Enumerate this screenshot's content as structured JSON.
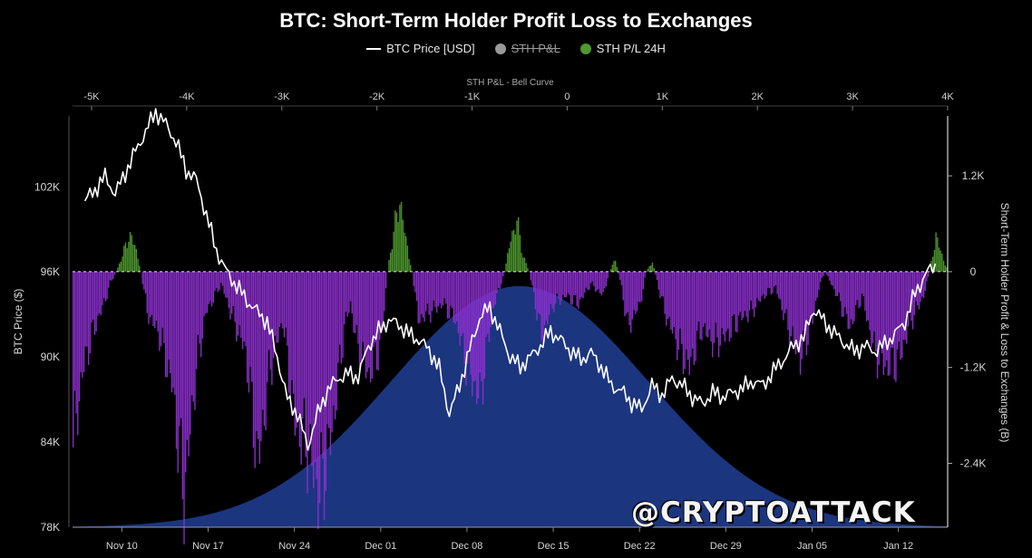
{
  "title": "BTC: Short-Term Holder Profit Loss to Exchanges",
  "legend": {
    "price": "BTC Price [USD]",
    "stth": "STH P&L",
    "stth24": "STH P/L 24H"
  },
  "watermark": "@CRYPTOATTACK",
  "colors": {
    "background": "#000000",
    "price": "#ffffff",
    "profit": "#4e9a2e",
    "loss": "#8d2fd0",
    "bell": "#1e3a8a",
    "stth_hidden": "#9a9a9a"
  },
  "chart_data": {
    "type": "line",
    "title": "BTC: Short-Term Holder Profit Loss to Exchanges",
    "top_axis": {
      "label": "STH P&L - Bell Curve",
      "ticks": [
        "-5K",
        "-4K",
        "-3K",
        "-2K",
        "-1K",
        "0",
        "1K",
        "2K",
        "3K",
        "4K"
      ],
      "values": [
        -5000,
        -4000,
        -3000,
        -2000,
        -1000,
        0,
        1000,
        2000,
        3000,
        4000
      ],
      "range": [
        -5200,
        4000
      ]
    },
    "x_axis": {
      "ticks": [
        "Nov 10",
        "Nov 17",
        "Nov 24",
        "Dec 01",
        "Dec 08",
        "Dec 15",
        "Dec 22",
        "Dec 29",
        "Jan 05",
        "Jan 12"
      ],
      "tick_days": [
        4,
        11,
        18,
        25,
        32,
        39,
        46,
        53,
        60,
        67
      ],
      "range_days": [
        0,
        71
      ]
    },
    "left_axis": {
      "label": "BTC Price ($)",
      "ticks": [
        "102K",
        "96K",
        "90K",
        "84K",
        "78K"
      ],
      "values": [
        102000,
        96000,
        90000,
        84000,
        78000
      ],
      "range": [
        78000,
        107000
      ]
    },
    "right_axis": {
      "label": "Short-Term Holder Profit & Loss to Exchanges (B)",
      "ticks": [
        "1.2K",
        "0",
        "-1.2K",
        "-2.4K"
      ],
      "values": [
        1200,
        0,
        -1200,
        -2400
      ],
      "range": [
        -3200,
        1950
      ]
    },
    "series": [
      {
        "name": "BTC Price [USD]",
        "kind": "line",
        "points": [
          [
            0,
            101000
          ],
          [
            1,
            101800
          ],
          [
            2,
            102700
          ],
          [
            3,
            101500
          ],
          [
            4,
            103000
          ],
          [
            5,
            104500
          ],
          [
            6,
            105900
          ],
          [
            7,
            107300
          ],
          [
            8,
            106400
          ],
          [
            9,
            105200
          ],
          [
            10,
            103200
          ],
          [
            11,
            102500
          ],
          [
            12,
            100000
          ],
          [
            13,
            97500
          ],
          [
            14,
            96000
          ],
          [
            15,
            95000
          ],
          [
            16,
            94000
          ],
          [
            17,
            93200
          ],
          [
            18,
            92500
          ],
          [
            19,
            90000
          ],
          [
            20,
            87000
          ],
          [
            21,
            86000
          ],
          [
            22,
            83700
          ],
          [
            23,
            86000
          ],
          [
            24,
            87700
          ],
          [
            25,
            88500
          ],
          [
            26,
            88800
          ],
          [
            27,
            88600
          ],
          [
            28,
            90800
          ],
          [
            29,
            91800
          ],
          [
            30,
            92600
          ],
          [
            31,
            92300
          ],
          [
            32,
            91600
          ],
          [
            33,
            91200
          ],
          [
            34,
            90500
          ],
          [
            35,
            89200
          ],
          [
            36,
            86000
          ],
          [
            37,
            88000
          ],
          [
            38,
            90500
          ],
          [
            39,
            92800
          ],
          [
            40,
            93500
          ],
          [
            41,
            91800
          ],
          [
            42,
            90000
          ],
          [
            43,
            89300
          ],
          [
            44,
            90000
          ],
          [
            45,
            90800
          ],
          [
            46,
            91800
          ],
          [
            47,
            91200
          ],
          [
            48,
            90400
          ],
          [
            49,
            89800
          ],
          [
            50,
            90300
          ],
          [
            51,
            89300
          ],
          [
            52,
            88000
          ],
          [
            53,
            87600
          ],
          [
            54,
            86800
          ],
          [
            55,
            86300
          ],
          [
            56,
            88000
          ],
          [
            57,
            87300
          ],
          [
            58,
            88500
          ],
          [
            59,
            88000
          ],
          [
            60,
            87200
          ],
          [
            61,
            86700
          ],
          [
            62,
            87500
          ],
          [
            63,
            87200
          ],
          [
            64,
            87500
          ],
          [
            65,
            87800
          ],
          [
            66,
            88300
          ],
          [
            67,
            88000
          ],
          [
            68,
            89000
          ],
          [
            69,
            89800
          ],
          [
            70,
            90800
          ],
          [
            71,
            91400
          ],
          [
            72,
            93400
          ],
          [
            73,
            92500
          ],
          [
            74,
            91700
          ],
          [
            75,
            91000
          ],
          [
            76,
            90400
          ],
          [
            77,
            90800
          ],
          [
            78,
            90400
          ],
          [
            79,
            90900
          ],
          [
            80,
            91600
          ],
          [
            81,
            92500
          ],
          [
            82,
            94500
          ],
          [
            83,
            95800
          ],
          [
            84,
            96500
          ]
        ],
        "x_scale": "index_to_days_0_71"
      },
      {
        "name": "STH P/L 24H",
        "kind": "area",
        "points": [
          [
            0,
            -2200
          ],
          [
            0.7,
            -1300
          ],
          [
            1.5,
            -800
          ],
          [
            2.5,
            -400
          ],
          [
            3,
            -150
          ],
          [
            3.5,
            0
          ],
          [
            4,
            200
          ],
          [
            4.5,
            450
          ],
          [
            5,
            350
          ],
          [
            5.5,
            0
          ],
          [
            6,
            -500
          ],
          [
            7,
            -800
          ],
          [
            8,
            -1400
          ],
          [
            9,
            -2800
          ],
          [
            10,
            -1200
          ],
          [
            10.8,
            -500
          ],
          [
            11.5,
            -300
          ],
          [
            12,
            -150
          ],
          [
            13,
            -600
          ],
          [
            14,
            -1000
          ],
          [
            15,
            -2400
          ],
          [
            16,
            -1200
          ],
          [
            17,
            -600
          ],
          [
            18,
            -1900
          ],
          [
            19,
            -2200
          ],
          [
            20,
            -2800
          ],
          [
            21,
            -2000
          ],
          [
            22,
            -700
          ],
          [
            22.5,
            -400
          ],
          [
            23,
            -900
          ],
          [
            24,
            -1300
          ],
          [
            25,
            -900
          ],
          [
            25.5,
            0
          ],
          [
            26,
            500
          ],
          [
            26.5,
            900
          ],
          [
            27,
            400
          ],
          [
            27.5,
            0
          ],
          [
            28,
            -600
          ],
          [
            29,
            -500
          ],
          [
            30,
            -400
          ],
          [
            31,
            -600
          ],
          [
            32,
            -1200
          ],
          [
            33,
            -1600
          ],
          [
            34,
            -500
          ],
          [
            35,
            0
          ],
          [
            35.5,
            400
          ],
          [
            36,
            650
          ],
          [
            36.5,
            200
          ],
          [
            37,
            0
          ],
          [
            38,
            -800
          ],
          [
            39,
            -400
          ],
          [
            40,
            -300
          ],
          [
            41,
            -400
          ],
          [
            42,
            -150
          ],
          [
            43,
            -300
          ],
          [
            43.5,
            0
          ],
          [
            44,
            150
          ],
          [
            44.5,
            -200
          ],
          [
            45,
            -700
          ],
          [
            46,
            -400
          ],
          [
            46.5,
            0
          ],
          [
            47,
            120
          ],
          [
            47.5,
            -200
          ],
          [
            48,
            -500
          ],
          [
            49,
            -900
          ],
          [
            50,
            -1200
          ],
          [
            51,
            -700
          ],
          [
            52,
            -900
          ],
          [
            53,
            -800
          ],
          [
            54,
            -600
          ],
          [
            55,
            -500
          ],
          [
            56,
            -300
          ],
          [
            57,
            -200
          ],
          [
            58,
            -700
          ],
          [
            59,
            -1100
          ],
          [
            60,
            -600
          ],
          [
            60.5,
            -200
          ],
          [
            61,
            0
          ],
          [
            61.5,
            -150
          ],
          [
            62,
            -300
          ],
          [
            63,
            -700
          ],
          [
            64,
            -300
          ],
          [
            65,
            -1000
          ],
          [
            66,
            -1200
          ],
          [
            67,
            -1100
          ],
          [
            68,
            -600
          ],
          [
            69,
            -300
          ],
          [
            69.5,
            0
          ],
          [
            70,
            450
          ],
          [
            70.5,
            200
          ],
          [
            71,
            0
          ],
          [
            71.5,
            0
          ]
        ],
        "x_scale": "days"
      },
      {
        "name": "STH P&L",
        "kind": "area",
        "hidden": true,
        "points": []
      }
    ],
    "bell_curve": {
      "name": "STH P&L - Bell Curve",
      "mean": -500,
      "sigma": 1350,
      "peak": 95000,
      "ylim_price": [
        78000,
        107000
      ]
    }
  }
}
